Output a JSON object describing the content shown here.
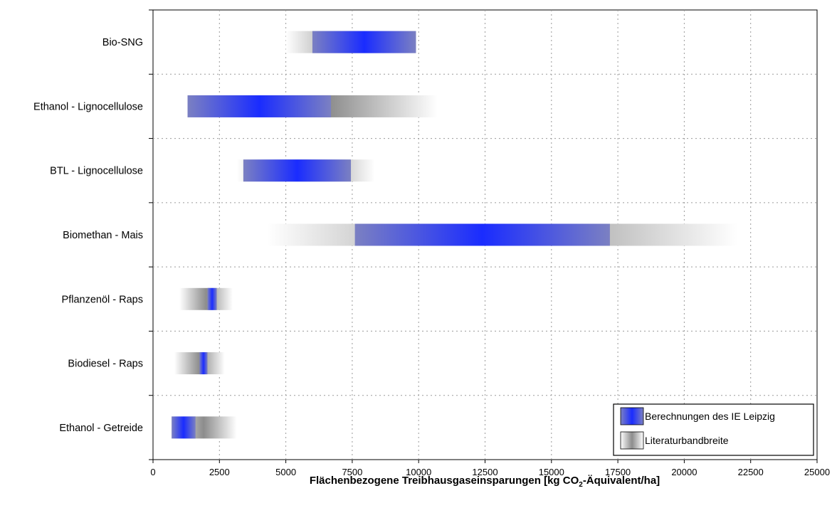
{
  "chart_data": {
    "type": "bar",
    "orientation": "horizontal-range",
    "categories": [
      "Bio-SNG",
      "Ethanol - Lignocellulose",
      "BTL - Lignocellulose",
      "Biomethan - Mais",
      "Pflanzenöl - Raps",
      "Biodiesel - Raps",
      "Ethanol - Getreide"
    ],
    "series": [
      {
        "name": "Berechnungen des IE Leipzig",
        "ranges": [
          [
            6000,
            9900
          ],
          [
            1300,
            6700
          ],
          [
            3400,
            7450
          ],
          [
            7600,
            17200
          ],
          [
            2050,
            2400
          ],
          [
            1750,
            2050
          ],
          [
            700,
            1600
          ]
        ]
      },
      {
        "name": "Literaturbandbreite",
        "ranges": [
          [
            5000,
            9900
          ],
          [
            2500,
            10700
          ],
          [
            3150,
            8350
          ],
          [
            4300,
            22000
          ],
          [
            1000,
            3000
          ],
          [
            800,
            2700
          ],
          [
            650,
            3150
          ]
        ]
      }
    ],
    "xlabel_main": "Flächenbezogene Treibhausgaseinsparungen [kg CO",
    "xlabel_sub": "2",
    "xlabel_tail": "-Äquivalent/ha]",
    "xlim": [
      0,
      25000
    ],
    "xticks": [
      "0",
      "2500",
      "5000",
      "7500",
      "10000",
      "12500",
      "15000",
      "17500",
      "20000",
      "22500",
      "25000"
    ],
    "grid": true,
    "legend_position": "bottom-right",
    "colors": {
      "calc": "#1a2cff",
      "calc_edge": "#7a7fc4",
      "lit": "#8c8c8c",
      "lit_edge": "#ffffff"
    }
  }
}
